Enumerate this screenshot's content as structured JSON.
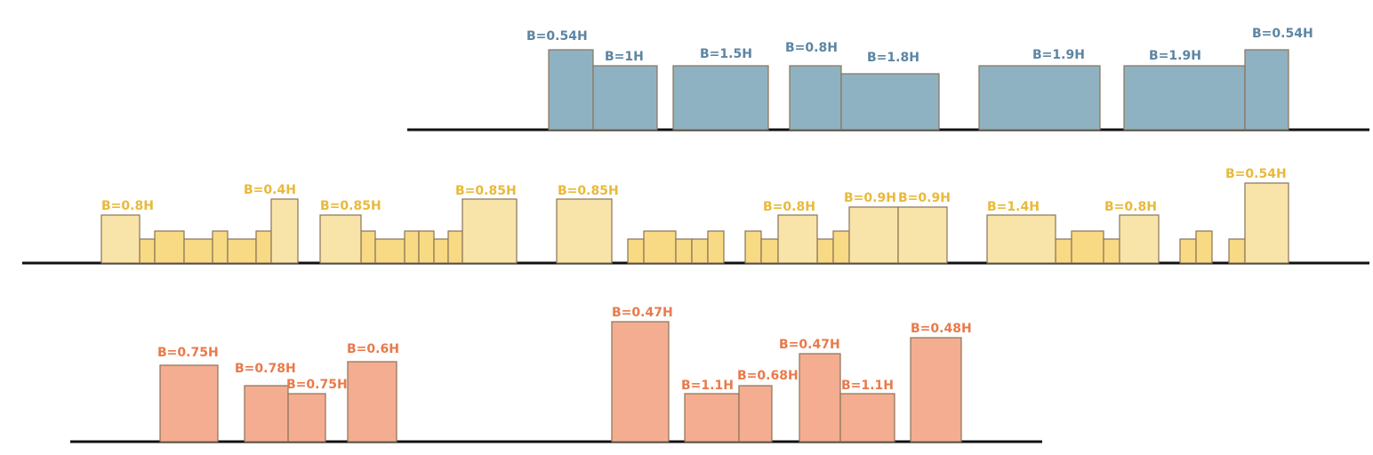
{
  "colors": {
    "blue_fill": "#8fb2c2",
    "blue_text": "#5d85a3",
    "yellow_fill": "#f8e4a8",
    "yellow_low_fill": "#f7da83",
    "yellow_text": "#e9b93a",
    "orange_fill": "#f4ad90",
    "orange_text": "#e97a4b",
    "outline": "#8a7358",
    "ground": "#111111"
  },
  "rows": [
    {
      "name": "blue",
      "labels": [
        "B=0.54H",
        "B=1H",
        "B=1.5H",
        "B=0.8H",
        "B=1.8H",
        "B=1.9H",
        "B=1.9H",
        "B=0.54H"
      ]
    },
    {
      "name": "yellow",
      "labels": [
        "B=0.8H",
        "B=0.4H",
        "B=0.85H",
        "B=0.85H",
        "B=0.85H",
        "B=0.8H",
        "B=0.9H",
        "B=0.9H",
        "B=1.4H",
        "B=0.8H",
        "B=0.54H"
      ]
    },
    {
      "name": "orange",
      "labels": [
        "B=0.75H",
        "B=0.78H",
        "B=0.75H",
        "B=0.6H",
        "B=0.47H",
        "B=1.1H",
        "B=0.68H",
        "B=0.47H",
        "B=1.1H",
        "B=0.48H"
      ]
    }
  ]
}
